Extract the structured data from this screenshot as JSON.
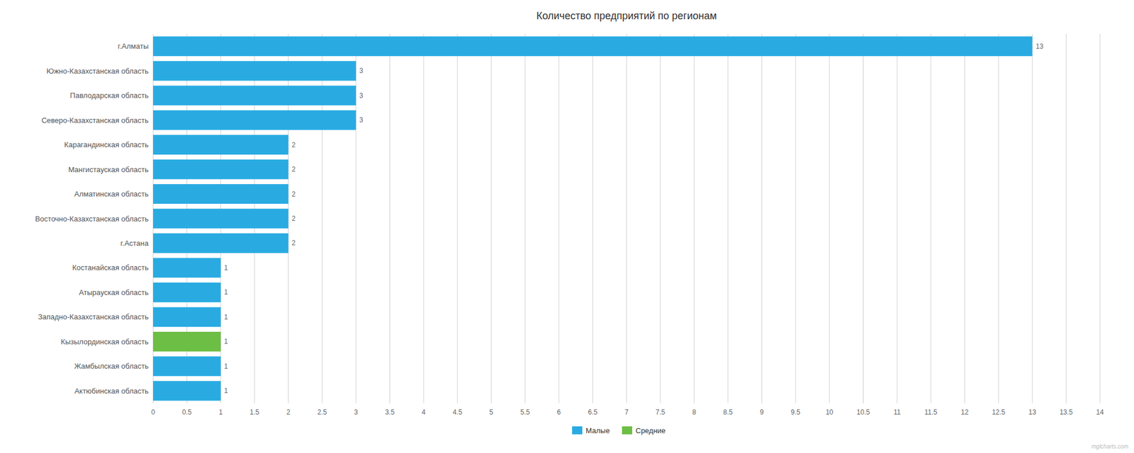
{
  "chart_data": {
    "type": "bar",
    "orientation": "horizontal",
    "stacked": true,
    "title": "Количество предприятий по регионам",
    "categories": [
      "г.Алматы",
      "Южно-Казахстанская область",
      "Павлодарская область",
      "Северо-Казахстанская область",
      "Карагандинская область",
      "Мангистауская область",
      "Алматинская область",
      "Восточно-Казахстанская область",
      "г.Астана",
      "Костанайская область",
      "Атырауская область",
      "Западно-Казахстанская область",
      "Кызылординская область",
      "Жамбылская область",
      "Актюбинская область"
    ],
    "series": [
      {
        "name": "Малые",
        "color": "#29ABE2",
        "values": [
          13,
          3,
          3,
          3,
          2,
          2,
          2,
          2,
          2,
          1,
          1,
          1,
          null,
          1,
          1
        ]
      },
      {
        "name": "Средние",
        "color": "#6DBE45",
        "values": [
          null,
          null,
          null,
          null,
          null,
          null,
          null,
          null,
          null,
          null,
          null,
          null,
          1,
          null,
          null
        ]
      }
    ],
    "xlim": [
      0,
      14
    ],
    "xticks": [
      0,
      0.5,
      1,
      1.5,
      2,
      2.5,
      3,
      3.5,
      4,
      4.5,
      5,
      5.5,
      6,
      6.5,
      7,
      7.5,
      8,
      8.5,
      9,
      9.5,
      10,
      10.5,
      11,
      11.5,
      12,
      12.5,
      13,
      13.5,
      14
    ],
    "grid": true,
    "legend": "bottom",
    "data_labels": true,
    "annotations": [
      "mglcharts.com"
    ]
  }
}
